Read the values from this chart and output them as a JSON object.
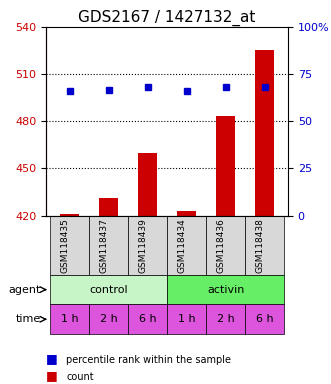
{
  "title": "GDS2167 / 1427132_at",
  "categories": [
    "GSM118435",
    "GSM118437",
    "GSM118439",
    "GSM118434",
    "GSM118436",
    "GSM118438"
  ],
  "bar_values": [
    421,
    431,
    460,
    423,
    483,
    525
  ],
  "blue_values": [
    499,
    500,
    502,
    499,
    502,
    502
  ],
  "left_ylim": [
    420,
    540
  ],
  "left_yticks": [
    420,
    450,
    480,
    510,
    540
  ],
  "right_ylim": [
    0,
    100
  ],
  "right_yticks": [
    0,
    25,
    50,
    75,
    100
  ],
  "right_yticklabels": [
    "0",
    "25",
    "50",
    "75",
    "100%"
  ],
  "bar_color": "#cc0000",
  "blue_color": "#0000cc",
  "bar_width": 0.5,
  "agent_labels": [
    "control",
    "activin"
  ],
  "agent_colors_light": [
    "#c8f5c8",
    "#66ee66"
  ],
  "time_labels": [
    "1 h",
    "2 h",
    "6 h",
    "1 h",
    "2 h",
    "6 h"
  ],
  "time_color": "#dd55dd",
  "grid_yticks": [
    450,
    480,
    510
  ],
  "title_fontsize": 11,
  "tick_fontsize": 8,
  "label_fontsize": 8,
  "gsm_fontsize": 6.5
}
